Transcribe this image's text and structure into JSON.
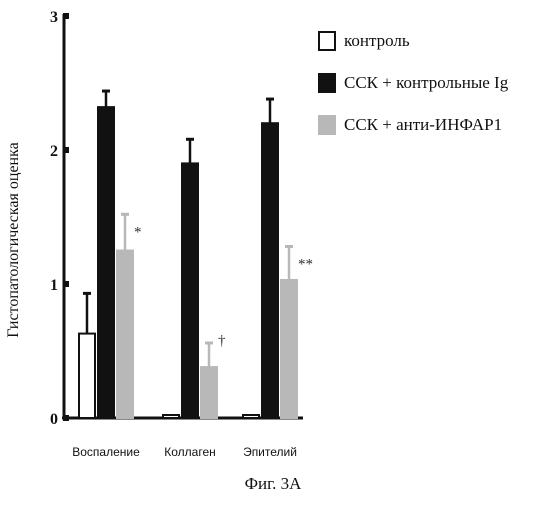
{
  "chart_data": {
    "type": "bar",
    "categories": [
      "Воспаление",
      "Коллаген",
      "Эпителий"
    ],
    "series": [
      {
        "name": "контроль",
        "color": "#ffffff",
        "stroke": "#111111",
        "values": [
          0.63,
          0.0,
          0.0
        ],
        "errors": [
          0.3,
          0.0,
          0.0
        ]
      },
      {
        "name": "ССК + контрольные Ig",
        "color": "#111111",
        "stroke": "#111111",
        "values": [
          2.32,
          1.9,
          2.2
        ],
        "errors": [
          0.12,
          0.18,
          0.18
        ]
      },
      {
        "name": "ССК + анти-ИНФАР1",
        "color": "#b8b8b8",
        "stroke": "#b8b8b8",
        "values": [
          1.25,
          0.38,
          1.03
        ],
        "errors": [
          0.27,
          0.18,
          0.25
        ]
      }
    ],
    "annotations": [
      "*",
      "†",
      "**"
    ],
    "yticks": [
      "0",
      "1",
      "2",
      "3"
    ],
    "ylim": [
      0,
      3
    ],
    "ylabel": "Гистопатологическая оценка",
    "legend_position": "right"
  },
  "caption": "Фиг. 3А"
}
